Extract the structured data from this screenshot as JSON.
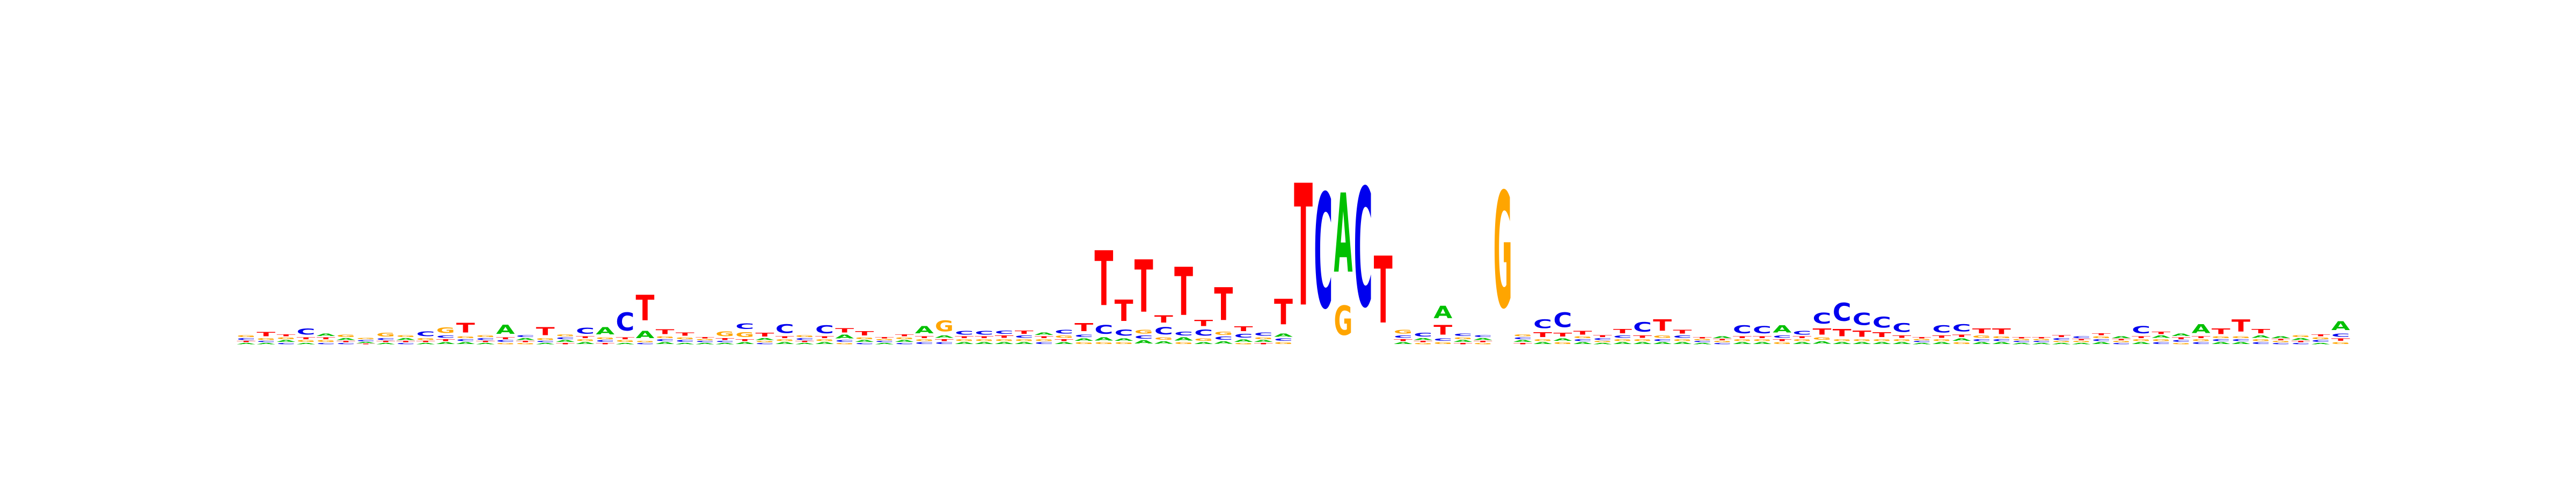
{
  "chart_data": {
    "type": "sequence-logo",
    "alphabet": [
      "A",
      "C",
      "G",
      "T"
    ],
    "colors": {
      "A": "#00c000",
      "C": "#0000ee",
      "G": "#ffa500",
      "T": "#ff0000"
    },
    "ylim": [
      0,
      2
    ],
    "axes_visible": false,
    "positions": [
      {
        "A": 0.02,
        "C": 0.03,
        "G": 0.03,
        "T": 0.02
      },
      {
        "A": 0.02,
        "C": 0.02,
        "G": 0.03,
        "T": 0.07
      },
      {
        "A": 0.03,
        "C": 0.02,
        "G": 0.03,
        "T": 0.03
      },
      {
        "A": 0.02,
        "C": 0.1,
        "G": 0.03,
        "T": 0.03
      },
      {
        "A": 0.04,
        "C": 0.02,
        "G": 0.03,
        "T": 0.03
      },
      {
        "A": 0.03,
        "C": 0.02,
        "G": 0.04,
        "T": 0.02
      },
      {
        "A": 0.02,
        "C": 0.02,
        "G": 0.02,
        "T": 0.01
      },
      {
        "A": 0.02,
        "C": 0.03,
        "G": 0.06,
        "T": 0.02
      },
      {
        "A": 0.03,
        "C": 0.02,
        "G": 0.03,
        "T": 0.02
      },
      {
        "A": 0.02,
        "C": 0.08,
        "G": 0.03,
        "T": 0.02
      },
      {
        "A": 0.03,
        "C": 0.04,
        "G": 0.09,
        "T": 0.03
      },
      {
        "A": 0.03,
        "C": 0.03,
        "G": 0.03,
        "T": 0.16
      },
      {
        "A": 0.02,
        "C": 0.03,
        "G": 0.03,
        "T": 0.02
      },
      {
        "A": 0.15,
        "C": 0.03,
        "G": 0.02,
        "T": 0.03
      },
      {
        "A": 0.03,
        "C": 0.03,
        "G": 0.02,
        "T": 0.02
      },
      {
        "A": 0.02,
        "C": 0.02,
        "G": 0.03,
        "T": 0.13
      },
      {
        "A": 0.03,
        "C": 0.03,
        "G": 0.03,
        "T": 0.02
      },
      {
        "A": 0.03,
        "C": 0.1,
        "G": 0.03,
        "T": 0.03
      },
      {
        "A": 0.12,
        "C": 0.03,
        "G": 0.03,
        "T": 0.02
      },
      {
        "A": 0.02,
        "C": 0.3,
        "G": 0.03,
        "T": 0.03
      },
      {
        "A": 0.12,
        "C": 0.02,
        "G": 0.02,
        "T": 0.42
      },
      {
        "A": 0.03,
        "C": 0.03,
        "G": 0.03,
        "T": 0.08
      },
      {
        "A": 0.02,
        "C": 0.03,
        "G": 0.03,
        "T": 0.05
      },
      {
        "A": 0.02,
        "C": 0.02,
        "G": 0.02,
        "T": 0.02
      },
      {
        "A": 0.02,
        "C": 0.02,
        "G": 0.08,
        "T": 0.03
      },
      {
        "A": 0.03,
        "C": 0.09,
        "G": 0.08,
        "T": 0.03
      },
      {
        "A": 0.03,
        "C": 0.02,
        "G": 0.02,
        "T": 0.06
      },
      {
        "A": 0.03,
        "C": 0.14,
        "G": 0.03,
        "T": 0.03
      },
      {
        "A": 0.02,
        "C": 0.03,
        "G": 0.03,
        "T": 0.02
      },
      {
        "A": 0.03,
        "C": 0.13,
        "G": 0.03,
        "T": 0.03
      },
      {
        "A": 0.06,
        "C": 0.03,
        "G": 0.02,
        "T": 0.07
      },
      {
        "A": 0.03,
        "C": 0.02,
        "G": 0.03,
        "T": 0.07
      },
      {
        "A": 0.02,
        "C": 0.02,
        "G": 0.02,
        "T": 0.02
      },
      {
        "A": 0.03,
        "C": 0.02,
        "G": 0.03,
        "T": 0.03
      },
      {
        "A": 0.12,
        "C": 0.03,
        "G": 0.03,
        "T": 0.03
      },
      {
        "A": 0.04,
        "C": 0.03,
        "G": 0.18,
        "T": 0.03
      },
      {
        "A": 0.03,
        "C": 0.06,
        "G": 0.03,
        "T": 0.03
      },
      {
        "A": 0.03,
        "C": 0.06,
        "G": 0.03,
        "T": 0.03
      },
      {
        "A": 0.03,
        "C": 0.05,
        "G": 0.03,
        "T": 0.04
      },
      {
        "A": 0.03,
        "C": 0.04,
        "G": 0.03,
        "T": 0.05
      },
      {
        "A": 0.04,
        "C": 0.03,
        "G": 0.03,
        "T": 0.03
      },
      {
        "A": 0.03,
        "C": 0.06,
        "G": 0.04,
        "T": 0.03
      },
      {
        "A": 0.04,
        "C": 0.04,
        "G": 0.03,
        "T": 0.13
      },
      {
        "A": 0.05,
        "C": 0.14,
        "G": 0.03,
        "T": 0.9
      },
      {
        "A": 0.04,
        "C": 0.1,
        "G": 0.03,
        "T": 0.35
      },
      {
        "A": 0.05,
        "C": 0.05,
        "G": 0.06,
        "T": 0.86
      },
      {
        "A": 0.04,
        "C": 0.12,
        "G": 0.04,
        "T": 0.12
      },
      {
        "A": 0.05,
        "C": 0.06,
        "G": 0.03,
        "T": 0.79
      },
      {
        "A": 0.03,
        "C": 0.1,
        "G": 0.04,
        "T": 0.1
      },
      {
        "A": 0.04,
        "C": 0.05,
        "G": 0.05,
        "T": 0.54
      },
      {
        "A": 0.04,
        "C": 0.06,
        "G": 0.02,
        "T": 0.08
      },
      {
        "A": 0.03,
        "C": 0.05,
        "G": 0.03,
        "T": 0.02
      },
      {
        "A": 0.05,
        "C": 0.04,
        "G": 0.03,
        "T": 0.42
      },
      {
        "A": 0.0,
        "C": 0.0,
        "G": 0.0,
        "T": 2.0
      },
      {
        "A": 0.0,
        "C": 1.88,
        "G": 0.0,
        "T": 0.0
      },
      {
        "A": 1.3,
        "C": 0.0,
        "G": 0.48,
        "T": 0.0
      },
      {
        "A": 0.0,
        "C": 1.95,
        "G": 0.0,
        "T": 0.0
      },
      {
        "A": 0.0,
        "C": 0.0,
        "G": 0.0,
        "T": 1.1
      },
      {
        "A": 0.03,
        "C": 0.04,
        "G": 0.06,
        "T": 0.03
      },
      {
        "A": 0.03,
        "C": 0.06,
        "G": 0.02,
        "T": 0.02
      },
      {
        "A": 0.2,
        "C": 0.04,
        "G": 0.03,
        "T": 0.16
      },
      {
        "A": 0.03,
        "C": 0.04,
        "G": 0.03,
        "T": 0.02
      },
      {
        "A": 0.03,
        "C": 0.03,
        "G": 0.02,
        "T": 0.02
      },
      {
        "A": 0.0,
        "C": 0.0,
        "G": 1.9,
        "T": 0.0
      },
      {
        "A": 0.03,
        "C": 0.03,
        "G": 0.03,
        "T": 0.02
      },
      {
        "A": 0.03,
        "C": 0.14,
        "G": 0.03,
        "T": 0.08
      },
      {
        "A": 0.04,
        "C": 0.24,
        "G": 0.03,
        "T": 0.06
      },
      {
        "A": 0.03,
        "C": 0.03,
        "G": 0.03,
        "T": 0.06
      },
      {
        "A": 0.02,
        "C": 0.03,
        "G": 0.02,
        "T": 0.03
      },
      {
        "A": 0.03,
        "C": 0.04,
        "G": 0.03,
        "T": 0.07
      },
      {
        "A": 0.03,
        "C": 0.16,
        "G": 0.03,
        "T": 0.04
      },
      {
        "A": 0.03,
        "C": 0.03,
        "G": 0.04,
        "T": 0.19
      },
      {
        "A": 0.03,
        "C": 0.04,
        "G": 0.03,
        "T": 0.06
      },
      {
        "A": 0.02,
        "C": 0.02,
        "G": 0.02,
        "T": 0.02
      },
      {
        "A": 0.03,
        "C": 0.02,
        "G": 0.02,
        "T": 0.02
      },
      {
        "A": 0.03,
        "C": 0.13,
        "G": 0.03,
        "T": 0.03
      },
      {
        "A": 0.03,
        "C": 0.12,
        "G": 0.03,
        "T": 0.03
      },
      {
        "A": 0.12,
        "C": 0.04,
        "G": 0.03,
        "T": 0.03
      },
      {
        "A": 0.03,
        "C": 0.06,
        "G": 0.03,
        "T": 0.03
      },
      {
        "A": 0.04,
        "C": 0.18,
        "G": 0.04,
        "T": 0.1
      },
      {
        "A": 0.03,
        "C": 0.3,
        "G": 0.03,
        "T": 0.12
      },
      {
        "A": 0.03,
        "C": 0.2,
        "G": 0.03,
        "T": 0.1
      },
      {
        "A": 0.03,
        "C": 0.18,
        "G": 0.03,
        "T": 0.08
      },
      {
        "A": 0.03,
        "C": 0.14,
        "G": 0.03,
        "T": 0.04
      },
      {
        "A": 0.02,
        "C": 0.02,
        "G": 0.02,
        "T": 0.02
      },
      {
        "A": 0.03,
        "C": 0.12,
        "G": 0.03,
        "T": 0.04
      },
      {
        "A": 0.04,
        "C": 0.12,
        "G": 0.03,
        "T": 0.04
      },
      {
        "A": 0.03,
        "C": 0.03,
        "G": 0.04,
        "T": 0.08
      },
      {
        "A": 0.03,
        "C": 0.03,
        "G": 0.03,
        "T": 0.09
      },
      {
        "A": 0.02,
        "C": 0.02,
        "G": 0.02,
        "T": 0.02
      },
      {
        "A": 0.02,
        "C": 0.02,
        "G": 0.02,
        "T": 0.02
      },
      {
        "A": 0.02,
        "C": 0.03,
        "G": 0.02,
        "T": 0.03
      },
      {
        "A": 0.02,
        "C": 0.03,
        "G": 0.02,
        "T": 0.02
      },
      {
        "A": 0.03,
        "C": 0.03,
        "G": 0.03,
        "T": 0.03
      },
      {
        "A": 0.03,
        "C": 0.02,
        "G": 0.02,
        "T": 0.02
      },
      {
        "A": 0.03,
        "C": 0.12,
        "G": 0.03,
        "T": 0.03
      },
      {
        "A": 0.04,
        "C": 0.03,
        "G": 0.03,
        "T": 0.04
      },
      {
        "A": 0.04,
        "C": 0.03,
        "G": 0.02,
        "T": 0.03
      },
      {
        "A": 0.14,
        "C": 0.03,
        "G": 0.03,
        "T": 0.03
      },
      {
        "A": 0.03,
        "C": 0.03,
        "G": 0.03,
        "T": 0.09
      },
      {
        "A": 0.03,
        "C": 0.03,
        "G": 0.03,
        "T": 0.2
      },
      {
        "A": 0.04,
        "C": 0.03,
        "G": 0.03,
        "T": 0.07
      },
      {
        "A": 0.03,
        "C": 0.02,
        "G": 0.02,
        "T": 0.02
      },
      {
        "A": 0.03,
        "C": 0.02,
        "G": 0.03,
        "T": 0.02
      },
      {
        "A": 0.02,
        "C": 0.03,
        "G": 0.03,
        "T": 0.03
      },
      {
        "A": 0.14,
        "C": 0.05,
        "G": 0.03,
        "T": 0.04
      }
    ]
  }
}
